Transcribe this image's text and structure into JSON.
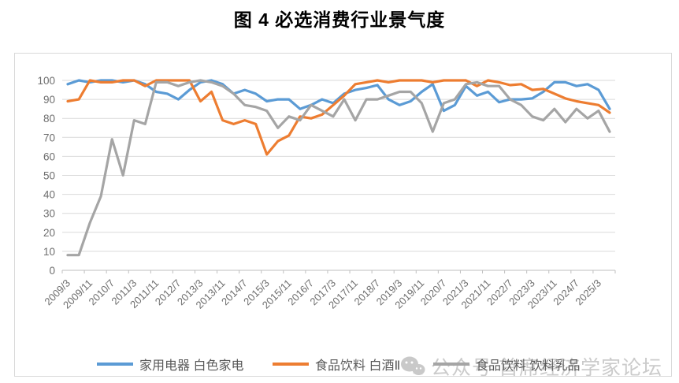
{
  "title": "图 4 必选消费行业景气度",
  "watermark": {
    "icon": "wechat-icon",
    "text": "公众号 首席经济学家论坛"
  },
  "chart_data": {
    "type": "line",
    "x": [
      "2009/3",
      "2009/7",
      "2009/11",
      "2010/3",
      "2010/7",
      "2010/11",
      "2011/3",
      "2011/7",
      "2011/11",
      "2012/3",
      "2012/7",
      "2012/11",
      "2013/3",
      "2013/7",
      "2013/11",
      "2014/3",
      "2014/7",
      "2014/11",
      "2015/3",
      "2015/7",
      "2015/11",
      "2016/3",
      "2016/7",
      "2016/11",
      "2017/3",
      "2017/7",
      "2017/11",
      "2018/3",
      "2018/7",
      "2018/11",
      "2019/3",
      "2019/7",
      "2019/11",
      "2020/3",
      "2020/7",
      "2020/11",
      "2021/3",
      "2021/7",
      "2021/11",
      "2022/3",
      "2022/7",
      "2022/11",
      "2023/3",
      "2023/7",
      "2023/11",
      "2024/3",
      "2024/7",
      "2024/11",
      "2025/3",
      "2025/7"
    ],
    "x_tick_labels": [
      "2009/3",
      "2009/11",
      "2010/7",
      "2011/3",
      "2011/11",
      "2012/7",
      "2013/3",
      "2013/11",
      "2014/7",
      "2015/3",
      "2015/11",
      "2016/7",
      "2017/3",
      "2017/11",
      "2018/7",
      "2019/3",
      "2019/11",
      "2020/7",
      "2021/3",
      "2021/11",
      "2022/7",
      "2023/3",
      "2023/11",
      "2024/7",
      "2025/3"
    ],
    "ylabel": "",
    "xlabel": "",
    "ylim": [
      0,
      100
    ],
    "ytick_step": 10,
    "grid": true,
    "legend_position": "bottom",
    "series": [
      {
        "name": "家用电器 白色家电",
        "color": "#5B9BD5",
        "values": [
          98,
          100,
          99,
          100,
          100,
          99,
          100,
          98,
          94,
          93,
          90,
          95,
          99,
          100,
          98,
          93,
          95,
          93,
          89,
          90,
          90,
          85,
          87,
          90,
          88,
          93,
          95,
          96,
          97.5,
          90,
          87,
          89,
          94,
          98,
          84,
          87,
          97,
          92,
          94,
          88.5,
          90,
          90,
          90.5,
          94,
          99,
          99,
          97,
          98,
          95,
          85
        ]
      },
      {
        "name": "食品饮料 白酒Ⅱ",
        "color": "#ED7D31",
        "values": [
          89,
          90,
          100,
          99,
          99,
          100,
          100,
          97,
          100,
          100,
          100,
          100,
          89,
          94,
          79,
          77,
          79,
          77,
          61,
          68,
          71,
          81,
          80,
          82,
          87,
          92,
          98,
          99,
          100,
          99,
          100,
          100,
          100,
          99,
          100,
          100,
          100,
          97,
          100,
          99,
          97.5,
          98,
          95,
          95.5,
          93,
          90.5,
          89,
          88,
          87,
          83
        ]
      },
      {
        "name": "食品饮料 饮料乳品",
        "color": "#A5A5A5",
        "values": [
          8,
          8,
          25,
          39,
          69,
          50,
          79,
          77,
          99,
          99,
          97,
          99,
          100,
          99,
          97,
          93,
          87,
          86,
          84,
          75,
          81,
          79,
          87,
          84,
          81,
          90,
          79,
          90,
          90,
          92,
          94,
          94,
          88,
          73,
          88,
          90,
          98,
          99,
          97,
          97,
          90,
          87,
          81,
          79,
          85,
          78,
          85,
          80,
          84,
          73
        ]
      }
    ],
    "style": {
      "gridline_color": "#d9d9d9",
      "axis_color": "#bfbfbf",
      "tick_label_color": "#6e6e6e",
      "line_width": 3.2
    }
  }
}
